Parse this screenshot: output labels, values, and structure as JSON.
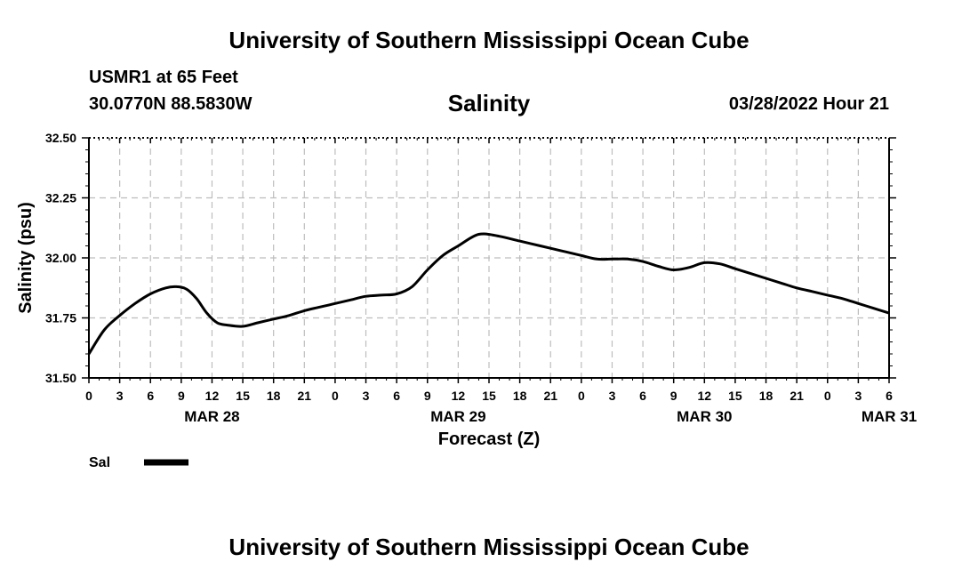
{
  "header": {
    "title": "University of Southern Mississippi Ocean Cube",
    "station": "USMR1 at 65 Feet",
    "coordinates": "30.0770N  88.5830W",
    "issued": "03/28/2022 Hour 21"
  },
  "footer": {
    "title": "University of Southern Mississippi Ocean Cube"
  },
  "chart_data": {
    "type": "line",
    "title": "Salinity",
    "xlabel": "Forecast (Z)",
    "ylabel": "Salinity (psu)",
    "ylim": [
      31.5,
      32.5
    ],
    "xlim": [
      0,
      78
    ],
    "x_unit": "hours from 03/28/2022 00Z",
    "y_ticks": [
      "31.50",
      "31.75",
      "32.00",
      "32.25",
      "32.50"
    ],
    "x_tick_labels": [
      "0",
      "3",
      "6",
      "9",
      "12",
      "15",
      "18",
      "21",
      "0",
      "3",
      "6",
      "9",
      "12",
      "15",
      "18",
      "21",
      "0",
      "3",
      "6",
      "9",
      "12",
      "15",
      "18",
      "21",
      "0",
      "3",
      "6"
    ],
    "date_labels": [
      {
        "label": "MAR 28",
        "hour": 12
      },
      {
        "label": "MAR 29",
        "hour": 36
      },
      {
        "label": "MAR 30",
        "hour": 60
      },
      {
        "label": "MAR 31",
        "hour": 78
      }
    ],
    "grid": true,
    "legend_position": "bottom-left",
    "series": [
      {
        "name": "Sal",
        "color": "#000000",
        "x": [
          0,
          1.5,
          3,
          4.5,
          6,
          7.5,
          8.5,
          9.5,
          10.5,
          11.5,
          12.5,
          13.5,
          15,
          16.5,
          18,
          19.5,
          21,
          22.5,
          24,
          25.5,
          27,
          28.5,
          30,
          31.5,
          33,
          34.5,
          36,
          37.5,
          38.5,
          40,
          42,
          44,
          46,
          48,
          49.5,
          51,
          52.5,
          54,
          55.5,
          57,
          58.5,
          60,
          61.5,
          63,
          64.5,
          66,
          67.5,
          69,
          70.5,
          72,
          73.5,
          75,
          76.5,
          78
        ],
        "y": [
          31.6,
          31.7,
          31.76,
          31.81,
          31.85,
          31.875,
          31.88,
          31.87,
          31.83,
          31.77,
          31.73,
          31.72,
          31.715,
          31.73,
          31.745,
          31.76,
          31.78,
          31.795,
          31.81,
          31.825,
          31.84,
          31.845,
          31.85,
          31.88,
          31.95,
          32.01,
          32.05,
          32.09,
          32.1,
          32.09,
          32.07,
          32.05,
          32.03,
          32.01,
          31.995,
          31.995,
          31.995,
          31.985,
          31.965,
          31.95,
          31.96,
          31.98,
          31.975,
          31.955,
          31.935,
          31.915,
          31.895,
          31.875,
          31.86,
          31.845,
          31.83,
          31.81,
          31.79,
          31.77
        ]
      }
    ]
  }
}
